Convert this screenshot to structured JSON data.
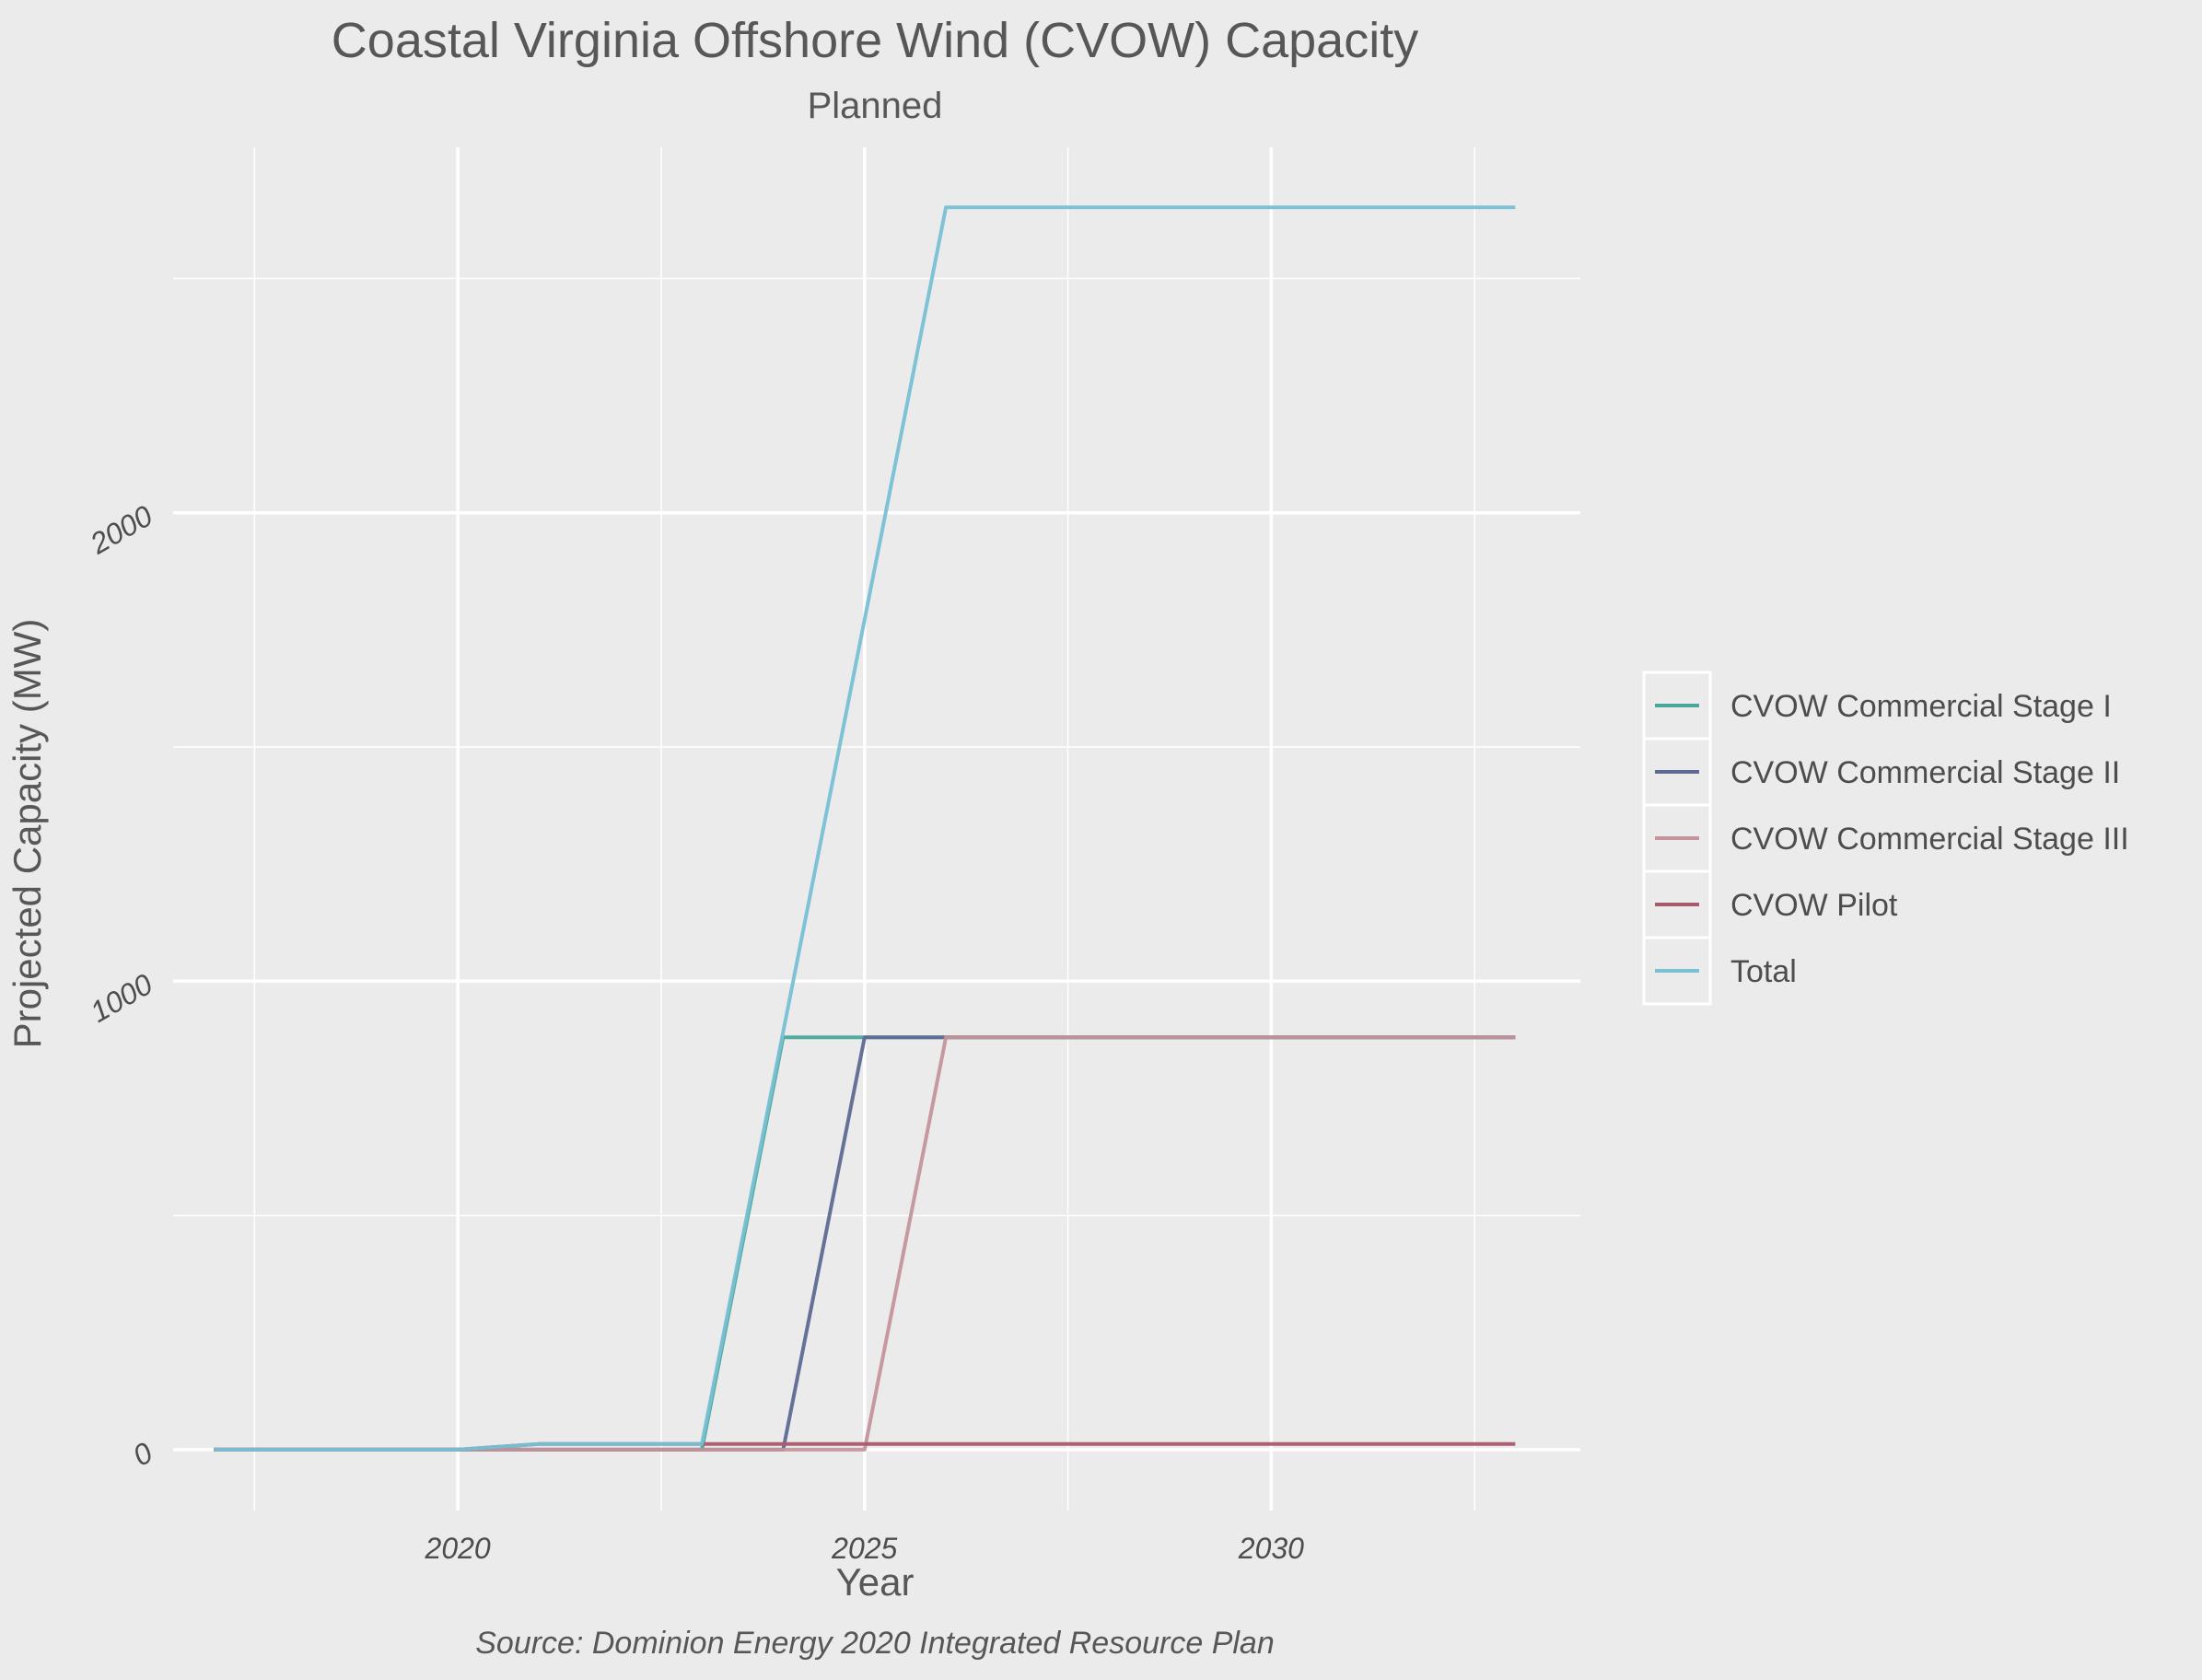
{
  "chart_data": {
    "type": "line",
    "title": "Coastal Virginia Offshore Wind (CVOW) Capacity",
    "subtitle": "Planned",
    "xlabel": "Year",
    "ylabel": "Projected Capacity (MW)",
    "caption": "Source: Dominion Energy 2020 Integrated Resource Plan",
    "xlim": [
      2016.5,
      2033.8
    ],
    "ylim": [
      -130,
      2780
    ],
    "x_ticks": [
      2020,
      2025,
      2030
    ],
    "y_ticks": [
      0,
      1000,
      2000
    ],
    "grid": true,
    "legend_position": "right",
    "x": [
      2017,
      2018,
      2019,
      2020,
      2021,
      2022,
      2023,
      2024,
      2025,
      2026,
      2027,
      2028,
      2029,
      2030,
      2031,
      2032,
      2033
    ],
    "series": [
      {
        "name": "CVOW Commercial Stage I",
        "color": "#4aa89a",
        "values": [
          0,
          0,
          0,
          0,
          0,
          0,
          0,
          880,
          880,
          880,
          880,
          880,
          880,
          880,
          880,
          880,
          880
        ]
      },
      {
        "name": "CVOW Commercial Stage II",
        "color": "#5e6a91",
        "values": [
          0,
          0,
          0,
          0,
          0,
          0,
          0,
          0,
          880,
          880,
          880,
          880,
          880,
          880,
          880,
          880,
          880
        ]
      },
      {
        "name": "CVOW Commercial Stage III",
        "color": "#c4939b",
        "values": [
          0,
          0,
          0,
          0,
          0,
          0,
          0,
          0,
          0,
          880,
          880,
          880,
          880,
          880,
          880,
          880,
          880
        ]
      },
      {
        "name": "CVOW Pilot",
        "color": "#a85a6b",
        "values": [
          0,
          0,
          0,
          0,
          12,
          12,
          12,
          12,
          12,
          12,
          12,
          12,
          12,
          12,
          12,
          12,
          12
        ]
      },
      {
        "name": "Total",
        "color": "#78c0d4",
        "values": [
          0,
          0,
          0,
          0,
          12,
          12,
          12,
          892,
          1772,
          2652,
          2652,
          2652,
          2652,
          2652,
          2652,
          2652,
          2652
        ]
      }
    ]
  }
}
